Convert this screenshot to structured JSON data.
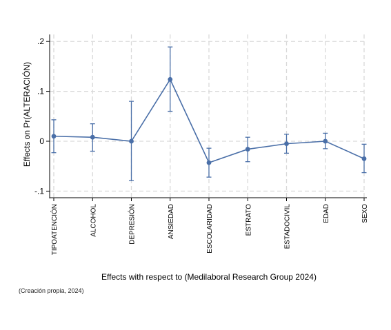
{
  "chart_data": {
    "type": "line",
    "title": "",
    "xlabel": "Effects with respect to (Medilaboral Research Group 2024)",
    "ylabel": "Effects on Pr(ALTERACIÓN)",
    "categories": [
      "TIPOATENCIÓN",
      "ALCOHOL",
      "DEPRESIÓN",
      "ANSIEDAD",
      "ESCOLARIDAD",
      "ESTRATO",
      "ESTADOCIVIL",
      "EDAD",
      "SEXO"
    ],
    "yticks": [
      -0.1,
      0,
      0.1,
      0.2
    ],
    "ytick_labels": [
      "-.1",
      "0",
      ".1",
      ".2"
    ],
    "ylim": [
      -0.115,
      0.215
    ],
    "grid": true,
    "series": [
      {
        "values": [
          0.01,
          0.008,
          0.0,
          0.124,
          -0.043,
          -0.016,
          -0.005,
          0.0,
          -0.035
        ],
        "ci_low": [
          -0.023,
          -0.02,
          -0.079,
          0.06,
          -0.072,
          -0.041,
          -0.024,
          -0.015,
          -0.063
        ],
        "ci_high": [
          0.043,
          0.035,
          0.08,
          0.189,
          -0.014,
          0.008,
          0.014,
          0.016,
          -0.006
        ]
      }
    ],
    "colors": {
      "line": "#4a6fa8",
      "grid": "#d9d9d9",
      "axis": "#000000"
    }
  },
  "caption": "(Creación propia, 2024)"
}
